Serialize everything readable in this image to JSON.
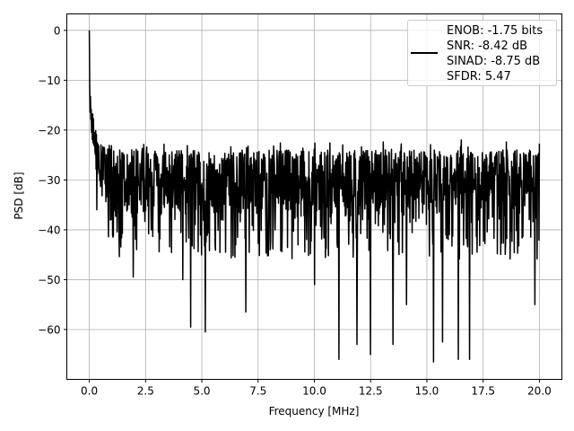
{
  "chart_data": {
    "type": "line",
    "title": "",
    "xlabel": "Frequency [MHz]",
    "ylabel": "PSD [dB]",
    "xlim": [
      -1.0,
      21.0
    ],
    "ylim": [
      -70,
      3.3
    ],
    "grid": true,
    "xticks": [
      0.0,
      2.5,
      5.0,
      7.5,
      10.0,
      12.5,
      15.0,
      17.5,
      20.0
    ],
    "xtick_labels": [
      "0.0",
      "2.5",
      "5.0",
      "7.5",
      "10.0",
      "12.5",
      "15.0",
      "17.5",
      "20.0"
    ],
    "yticks": [
      0,
      -10,
      -20,
      -30,
      -40,
      -50,
      -60
    ],
    "ytick_labels": [
      "0",
      "−10",
      "−20",
      "−30",
      "−40",
      "−50",
      "−60"
    ],
    "legend": {
      "placement": "top-right",
      "entries": [
        "ENOB: -1.75 bits",
        "SNR: -8.42 dB",
        "SINAD: -8.75 dB",
        "SFDR: 5.47"
      ]
    },
    "series": [
      {
        "name": "PSD",
        "color": "#000000",
        "x_range": [
          0.0,
          20.0
        ],
        "num_points": 1200,
        "peak": {
          "x": 0.0,
          "y": 0.0
        },
        "noise_floor": {
          "upper_envelope": -25,
          "mean": -31,
          "lower_typical": -40
        },
        "notable_minima": [
          {
            "x": 1.95,
            "y": -49.5
          },
          {
            "x": 4.15,
            "y": -50
          },
          {
            "x": 4.5,
            "y": -59.5
          },
          {
            "x": 5.15,
            "y": -60.5
          },
          {
            "x": 6.95,
            "y": -56.5
          },
          {
            "x": 10.0,
            "y": -51
          },
          {
            "x": 11.1,
            "y": -66
          },
          {
            "x": 11.9,
            "y": -63
          },
          {
            "x": 12.5,
            "y": -65
          },
          {
            "x": 13.5,
            "y": -63
          },
          {
            "x": 14.1,
            "y": -55
          },
          {
            "x": 15.3,
            "y": -66.5
          },
          {
            "x": 15.7,
            "y": -62.5
          },
          {
            "x": 16.4,
            "y": -66
          },
          {
            "x": 16.9,
            "y": -66
          },
          {
            "x": 19.8,
            "y": -55
          }
        ]
      }
    ]
  }
}
